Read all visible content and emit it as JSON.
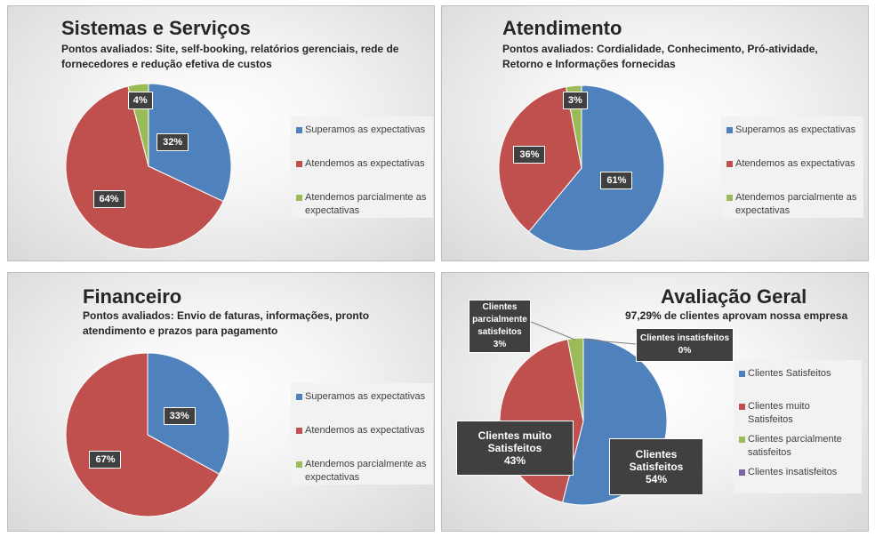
{
  "chart_data": [
    {
      "type": "pie",
      "title": "Sistemas e Serviços",
      "subtitle": "Pontos avaliados: Site, self-booking, relatórios gerenciais, rede de fornecedores e redução efetiva de custos",
      "categories": [
        "Superamos as expectativas",
        "Atendemos as expectativas",
        "Atendemos parcialmente as expectativas"
      ],
      "values": [
        32,
        64,
        4
      ],
      "data_labels": [
        "32%",
        "64%",
        "4%"
      ],
      "colors": [
        "#4f81bd",
        "#c0504d",
        "#9bbb59"
      ],
      "legend_position": "right"
    },
    {
      "type": "pie",
      "title": "Atendimento",
      "subtitle": "Pontos avaliados: Cordialidade, Conhecimento, Pró-atividade, Retorno e Informações fornecidas",
      "categories": [
        "Superamos as expectativas",
        "Atendemos as expectativas",
        "Atendemos parcialmente as expectativas"
      ],
      "values": [
        61,
        36,
        3
      ],
      "data_labels": [
        "61%",
        "36%",
        "3%"
      ],
      "colors": [
        "#4f81bd",
        "#c0504d",
        "#9bbb59"
      ],
      "legend_position": "right"
    },
    {
      "type": "pie",
      "title": "Financeiro",
      "subtitle": "Pontos avaliados: Envio de faturas, informações, pronto atendimento e prazos para pagamento",
      "categories": [
        "Superamos as expectativas",
        "Atendemos as expectativas",
        "Atendemos parcialmente as expectativas"
      ],
      "values": [
        33,
        67,
        0
      ],
      "data_labels": [
        "33%",
        "67%",
        ""
      ],
      "colors": [
        "#4f81bd",
        "#c0504d",
        "#9bbb59"
      ],
      "legend_position": "right"
    },
    {
      "type": "pie",
      "title": "Avaliação Geral",
      "subtitle": "97,29% de clientes aprovam nossa empresa",
      "categories": [
        "Clientes Satisfeitos",
        "Clientes muito Satisfeitos",
        "Clientes parcialmente satisfeitos",
        "Clientes insatisfeitos"
      ],
      "values": [
        54,
        43,
        3,
        0
      ],
      "data_labels": [
        [
          "Clientes",
          "Satisfeitos",
          "54%"
        ],
        [
          "Clientes muito",
          "Satisfeitos",
          "43%"
        ],
        [
          "Clientes",
          "parcialmente",
          "satisfeitos",
          "3%"
        ],
        [
          "Clientes insatisfeitos",
          "0%"
        ]
      ],
      "colors": [
        "#4f81bd",
        "#c0504d",
        "#9bbb59",
        "#8064a2"
      ],
      "legend_position": "right"
    }
  ]
}
